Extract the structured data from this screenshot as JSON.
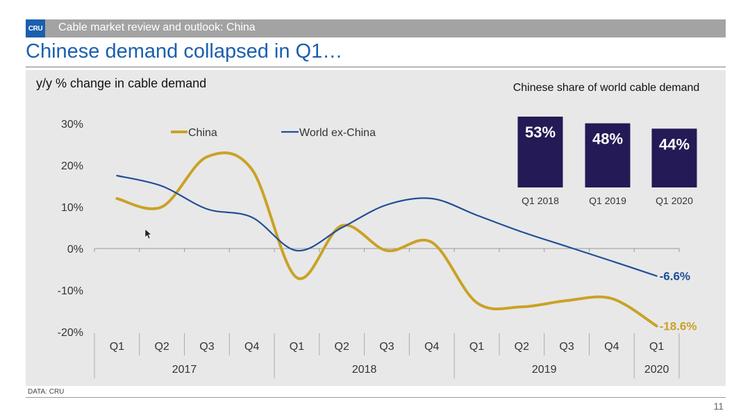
{
  "header": {
    "logo_text": "CRU",
    "subtitle": "Cable market review and outlook: China"
  },
  "page_title": "Chinese demand collapsed in Q1…",
  "footer": {
    "source": "DATA: CRU",
    "page_number": "11"
  },
  "colors": {
    "china": "#c9a227",
    "world": "#1f4e96",
    "inset_box": "#241a55",
    "title": "#1b5fae"
  },
  "chart_data": [
    {
      "type": "line",
      "title": "y/y % change in cable demand",
      "categories": [
        "Q1",
        "Q2",
        "Q3",
        "Q4",
        "Q1",
        "Q2",
        "Q3",
        "Q4",
        "Q1",
        "Q2",
        "Q3",
        "Q4",
        "Q1"
      ],
      "year_groups": [
        {
          "label": "2017",
          "span": 4
        },
        {
          "label": "2018",
          "span": 4
        },
        {
          "label": "2019",
          "span": 4
        },
        {
          "label": "2020",
          "span": 1
        }
      ],
      "ylim": [
        -20,
        30
      ],
      "yticks": [
        30,
        20,
        10,
        0,
        -10,
        -20
      ],
      "ytick_labels": [
        "30%",
        "20%",
        "10%",
        "0%",
        "-10%",
        "-20%"
      ],
      "legend_position": "top-left",
      "series": [
        {
          "name": "China",
          "values": [
            12,
            10,
            22,
            19,
            -7,
            5.5,
            -0.5,
            1.5,
            -13,
            -14,
            -12.5,
            -12,
            -18.6
          ]
        },
        {
          "name": "World ex-China",
          "values": [
            17.5,
            15,
            9.5,
            7.5,
            -0.5,
            5,
            10.5,
            12,
            8,
            4,
            0.5,
            -3,
            -6.6
          ]
        }
      ],
      "end_labels": {
        "China": "-18.6%",
        "World ex-China": "-6.6%"
      }
    },
    {
      "type": "bar",
      "title": "Chinese share of world cable demand",
      "categories": [
        "Q1 2018",
        "Q1 2019",
        "Q1 2020"
      ],
      "values": [
        53,
        48,
        44
      ],
      "value_labels": [
        "53%",
        "48%",
        "44%"
      ]
    }
  ]
}
